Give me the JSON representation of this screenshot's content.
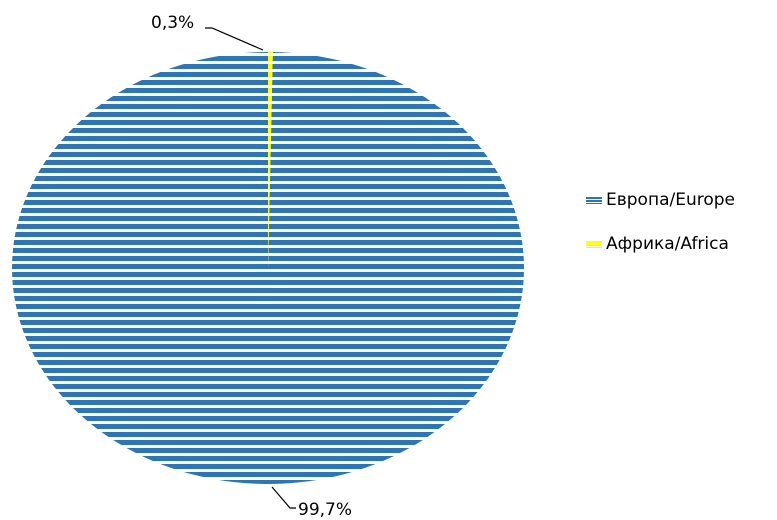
{
  "chart_data": {
    "type": "pie",
    "title": "",
    "categories": [
      "Европа/Europe",
      "Африка/Africa"
    ],
    "values": [
      99.7,
      0.3
    ],
    "labels": [
      "99,7%",
      "0,3%"
    ],
    "colors": [
      "#2E75B6",
      "#FFFF00"
    ],
    "fill_pattern": "horizontal-stripes",
    "legend_position": "right"
  }
}
